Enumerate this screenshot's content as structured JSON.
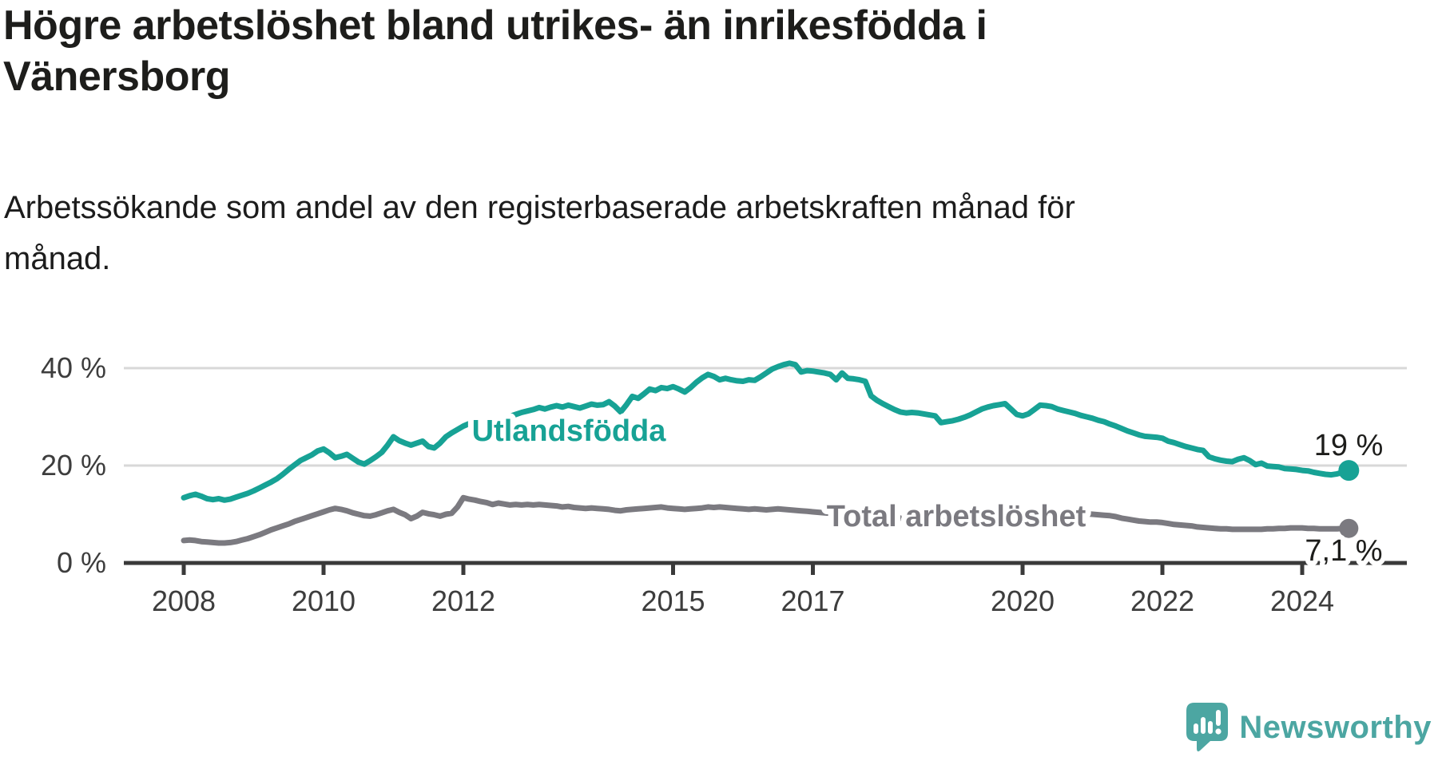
{
  "header": {
    "title_lines": [
      "Högre arbetslöshet bland utrikes- än inrikesfödda i",
      "Vänersborg"
    ],
    "subtitle_lines": [
      "Arbetssökande som andel av den registerbaserade arbetskraften månad för",
      "månad."
    ]
  },
  "footer": {
    "brand": "Newsworthy",
    "brand_color": "#4ca6a2",
    "logo_icon": "speech-bubble-bar-chart-icon"
  },
  "chart_data": {
    "type": "line",
    "title": "Högre arbetslöshet bland utrikes- än inrikesfödda i Vänersborg",
    "subtitle": "Arbetssökande som andel av den registerbaserade arbetskraften månad för månad.",
    "unit": "%",
    "x_unit": "month",
    "x_start": "2008-01",
    "x_end": "2024-09",
    "x_ticks": [
      "2008",
      "2010",
      "2012",
      "2015",
      "2017",
      "2020",
      "2022",
      "2024"
    ],
    "x_tick_years": [
      2008,
      2010,
      2012,
      2015,
      2017,
      2020,
      2022,
      2024
    ],
    "y_ticks": [
      {
        "value": 0,
        "label": "0 %"
      },
      {
        "value": 20,
        "label": "20 %"
      },
      {
        "value": 40,
        "label": "40 %"
      }
    ],
    "ylim": [
      0,
      44
    ],
    "grid": "horizontal",
    "legend": "inline-labels",
    "series": [
      {
        "name": "Utlandsfödda",
        "color": "#17a295",
        "end_label": "19 %",
        "end_value": 19,
        "values": [
          13.4,
          13.8,
          14.1,
          13.7,
          13.2,
          13.0,
          13.2,
          12.9,
          13.1,
          13.5,
          13.9,
          14.3,
          14.8,
          15.4,
          16.0,
          16.6,
          17.3,
          18.2,
          19.2,
          20.1,
          21.0,
          21.6,
          22.2,
          23.0,
          23.4,
          22.6,
          21.6,
          21.9,
          22.3,
          21.5,
          20.7,
          20.3,
          21.0,
          21.8,
          22.7,
          24.2,
          25.9,
          25.1,
          24.6,
          24.2,
          24.6,
          25.0,
          23.9,
          23.6,
          24.6,
          25.9,
          26.7,
          27.4,
          28.1,
          28.6,
          29.0,
          28.7,
          29.1,
          29.5,
          29.2,
          29.7,
          30.1,
          30.5,
          30.9,
          31.2,
          31.5,
          31.9,
          31.6,
          32.0,
          32.3,
          32.0,
          32.4,
          32.1,
          31.8,
          32.2,
          32.6,
          32.4,
          32.5,
          33.1,
          32.2,
          31.0,
          32.5,
          34.2,
          33.8,
          34.7,
          35.7,
          35.4,
          36.0,
          35.8,
          36.2,
          35.7,
          35.1,
          36.0,
          37.1,
          38.0,
          38.7,
          38.3,
          37.6,
          37.9,
          37.6,
          37.4,
          37.3,
          37.6,
          37.5,
          38.2,
          39.0,
          39.8,
          40.3,
          40.7,
          41.0,
          40.7,
          39.2,
          39.5,
          39.4,
          39.2,
          39.0,
          38.7,
          37.6,
          39.0,
          37.9,
          37.8,
          37.6,
          37.3,
          34.3,
          33.4,
          32.7,
          32.1,
          31.5,
          31.0,
          30.8,
          30.9,
          30.8,
          30.6,
          30.4,
          30.2,
          28.8,
          29.0,
          29.2,
          29.5,
          29.9,
          30.4,
          31.0,
          31.6,
          32.0,
          32.3,
          32.5,
          32.7,
          31.6,
          30.5,
          30.2,
          30.6,
          31.5,
          32.4,
          32.3,
          32.1,
          31.6,
          31.3,
          31.0,
          30.7,
          30.3,
          30.0,
          29.7,
          29.3,
          29.0,
          28.5,
          28.1,
          27.6,
          27.1,
          26.7,
          26.3,
          26.0,
          25.9,
          25.8,
          25.6,
          25.0,
          24.7,
          24.3,
          23.9,
          23.6,
          23.3,
          23.1,
          21.8,
          21.4,
          21.1,
          20.9,
          20.8,
          21.3,
          21.6,
          21.0,
          20.2,
          20.5,
          19.9,
          19.8,
          19.7,
          19.4,
          19.3,
          19.2,
          19.0,
          18.9,
          18.6,
          18.4,
          18.2,
          18.1,
          18.3,
          18.6,
          19.0
        ]
      },
      {
        "name": "Total arbetslöshet",
        "color": "#7b7a80",
        "end_label": "7,1 %",
        "end_value": 7.1,
        "values": [
          4.6,
          4.7,
          4.6,
          4.4,
          4.3,
          4.2,
          4.1,
          4.1,
          4.2,
          4.4,
          4.7,
          5.0,
          5.4,
          5.8,
          6.3,
          6.8,
          7.2,
          7.6,
          8.0,
          8.5,
          8.9,
          9.3,
          9.7,
          10.1,
          10.5,
          10.9,
          11.2,
          11.0,
          10.7,
          10.3,
          10.0,
          9.7,
          9.6,
          9.9,
          10.3,
          10.7,
          11.0,
          10.4,
          9.9,
          9.1,
          9.6,
          10.4,
          10.1,
          9.9,
          9.6,
          10.0,
          10.2,
          11.5,
          13.4,
          13.1,
          12.9,
          12.6,
          12.4,
          12.0,
          12.3,
          12.1,
          11.9,
          12.0,
          11.9,
          12.0,
          11.9,
          12.0,
          11.9,
          11.8,
          11.7,
          11.5,
          11.6,
          11.4,
          11.3,
          11.2,
          11.3,
          11.2,
          11.1,
          11.0,
          10.8,
          10.7,
          10.9,
          11.0,
          11.1,
          11.2,
          11.3,
          11.4,
          11.5,
          11.3,
          11.2,
          11.1,
          11.0,
          11.1,
          11.2,
          11.3,
          11.5,
          11.4,
          11.5,
          11.4,
          11.3,
          11.2,
          11.1,
          11.0,
          11.1,
          11.0,
          10.9,
          11.0,
          11.1,
          11.0,
          10.9,
          10.8,
          10.7,
          10.6,
          10.5,
          10.4,
          10.3,
          10.2,
          10.1,
          10.3,
          10.2,
          10.1,
          10.0,
          9.9,
          9.7,
          9.6,
          9.5,
          9.4,
          9.3,
          9.2,
          9.1,
          9.2,
          9.1,
          9.0,
          8.9,
          8.8,
          8.7,
          8.8,
          8.9,
          9.0,
          9.1,
          9.2,
          9.3,
          9.4,
          9.6,
          9.7,
          9.8,
          9.9,
          9.8,
          9.7,
          9.8,
          9.9,
          10.2,
          10.6,
          10.8,
          10.9,
          10.8,
          10.7,
          10.5,
          10.4,
          10.2,
          10.1,
          10.0,
          9.9,
          9.8,
          9.7,
          9.5,
          9.2,
          9.0,
          8.8,
          8.6,
          8.5,
          8.4,
          8.4,
          8.3,
          8.1,
          7.9,
          7.8,
          7.7,
          7.6,
          7.4,
          7.3,
          7.2,
          7.1,
          7.0,
          7.0,
          6.9,
          6.9,
          6.9,
          6.9,
          6.9,
          6.9,
          7.0,
          7.0,
          7.1,
          7.1,
          7.2,
          7.2,
          7.2,
          7.1,
          7.1,
          7.0,
          7.0,
          7.0,
          7.0,
          7.1,
          7.1
        ]
      }
    ]
  }
}
